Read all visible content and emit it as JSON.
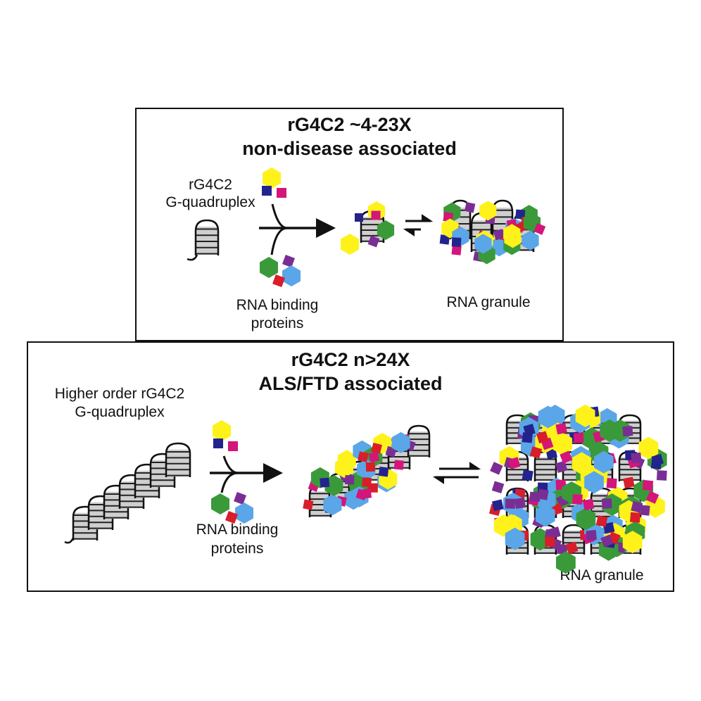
{
  "top_panel": {
    "title_line1": "rG4C2  ~4-23X",
    "title_line2": "non-disease associated",
    "gq_label_line1": "rG4C2",
    "gq_label_line2": "G-quadruplex",
    "rbp_label_line1": "RNA binding",
    "rbp_label_line2": "proteins",
    "granule_label": "RNA granule"
  },
  "bottom_panel": {
    "title_line1": "rG4C2 n>24X",
    "title_line2": "ALS/FTD associated",
    "gq_label_line1": "Higher order rG4C2",
    "gq_label_line2": "G-quadruplex",
    "rbp_label_line1": "RNA binding",
    "rbp_label_line2": "proteins",
    "granule_label": "RNA granule"
  },
  "protein_colors": {
    "yellow": "#FFF21A",
    "navy": "#23238E",
    "magenta": "#D4157A",
    "green": "#3A9A3A",
    "purple": "#7A2E93",
    "blue": "#5AA6E8",
    "red": "#D81E2A"
  }
}
